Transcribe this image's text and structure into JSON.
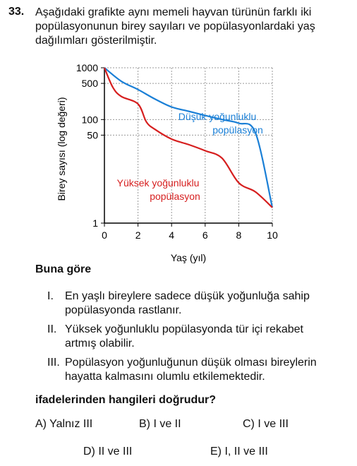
{
  "question": {
    "number": "33.",
    "stem_lines": [
      "Aşağıdaki grafikte aynı memeli hayvan türünün farklı iki",
      "popülasyonunun birey sayıları ve popülasyonlardaki yaş",
      "dağılımları gösterilmiştir."
    ],
    "lead": "Buna göre",
    "statements": [
      {
        "num": "I.",
        "lines": [
          "En yaşlı bireylere sadece düşük yoğunluğa sahip",
          "popülasyonda rastlanır."
        ]
      },
      {
        "num": "II.",
        "lines": [
          "Yüksek yoğunluklu popülasyonda tür içi rekabet",
          "artmış olabilir."
        ]
      },
      {
        "num": "III.",
        "lines": [
          "Popülasyon yoğunluğunun düşük olması bireylerin",
          "hayatta kalmasını olumlu etkilemektedir."
        ]
      }
    ],
    "ask": "ifadelerinden hangileri doğrudur?",
    "choices": [
      "A) Yalnız III",
      "B) I ve II",
      "C) I ve III",
      "D) II ve III",
      "E) I, II ve III"
    ]
  },
  "chart_data": {
    "type": "line",
    "xlabel": "Yaş (yıl)",
    "ylabel": "Birey sayısı  (log değeri)",
    "x_ticks": [
      "0",
      "2",
      "4",
      "6",
      "8",
      "10"
    ],
    "y_ticks": [
      "1",
      "50",
      "100",
      "500",
      "1000"
    ],
    "xlim": [
      0,
      10
    ],
    "y_scale": "log",
    "grid": true,
    "series": [
      {
        "name": "Düşük yoğunluklu popülasyon",
        "label_lines": [
          "Düşük yoğunluklu",
          "popülasyon"
        ],
        "color": "#1a7fd6",
        "x": [
          0,
          1,
          2,
          3,
          4,
          5,
          6,
          7,
          8,
          9,
          10
        ],
        "y": [
          1000,
          550,
          380,
          250,
          175,
          145,
          120,
          100,
          85,
          55,
          2
        ]
      },
      {
        "name": "Yüksek yoğunluklu popülasyon",
        "label_lines": [
          "Yüksek yoğunluklu",
          "popülasyon"
        ],
        "color": "#d61f1f",
        "x": [
          0,
          0.5,
          1,
          2,
          2.5,
          3,
          4,
          5,
          6,
          7,
          8,
          9,
          10
        ],
        "y": [
          1000,
          420,
          280,
          200,
          90,
          65,
          42,
          33,
          25,
          18,
          6,
          4,
          2
        ]
      }
    ]
  }
}
